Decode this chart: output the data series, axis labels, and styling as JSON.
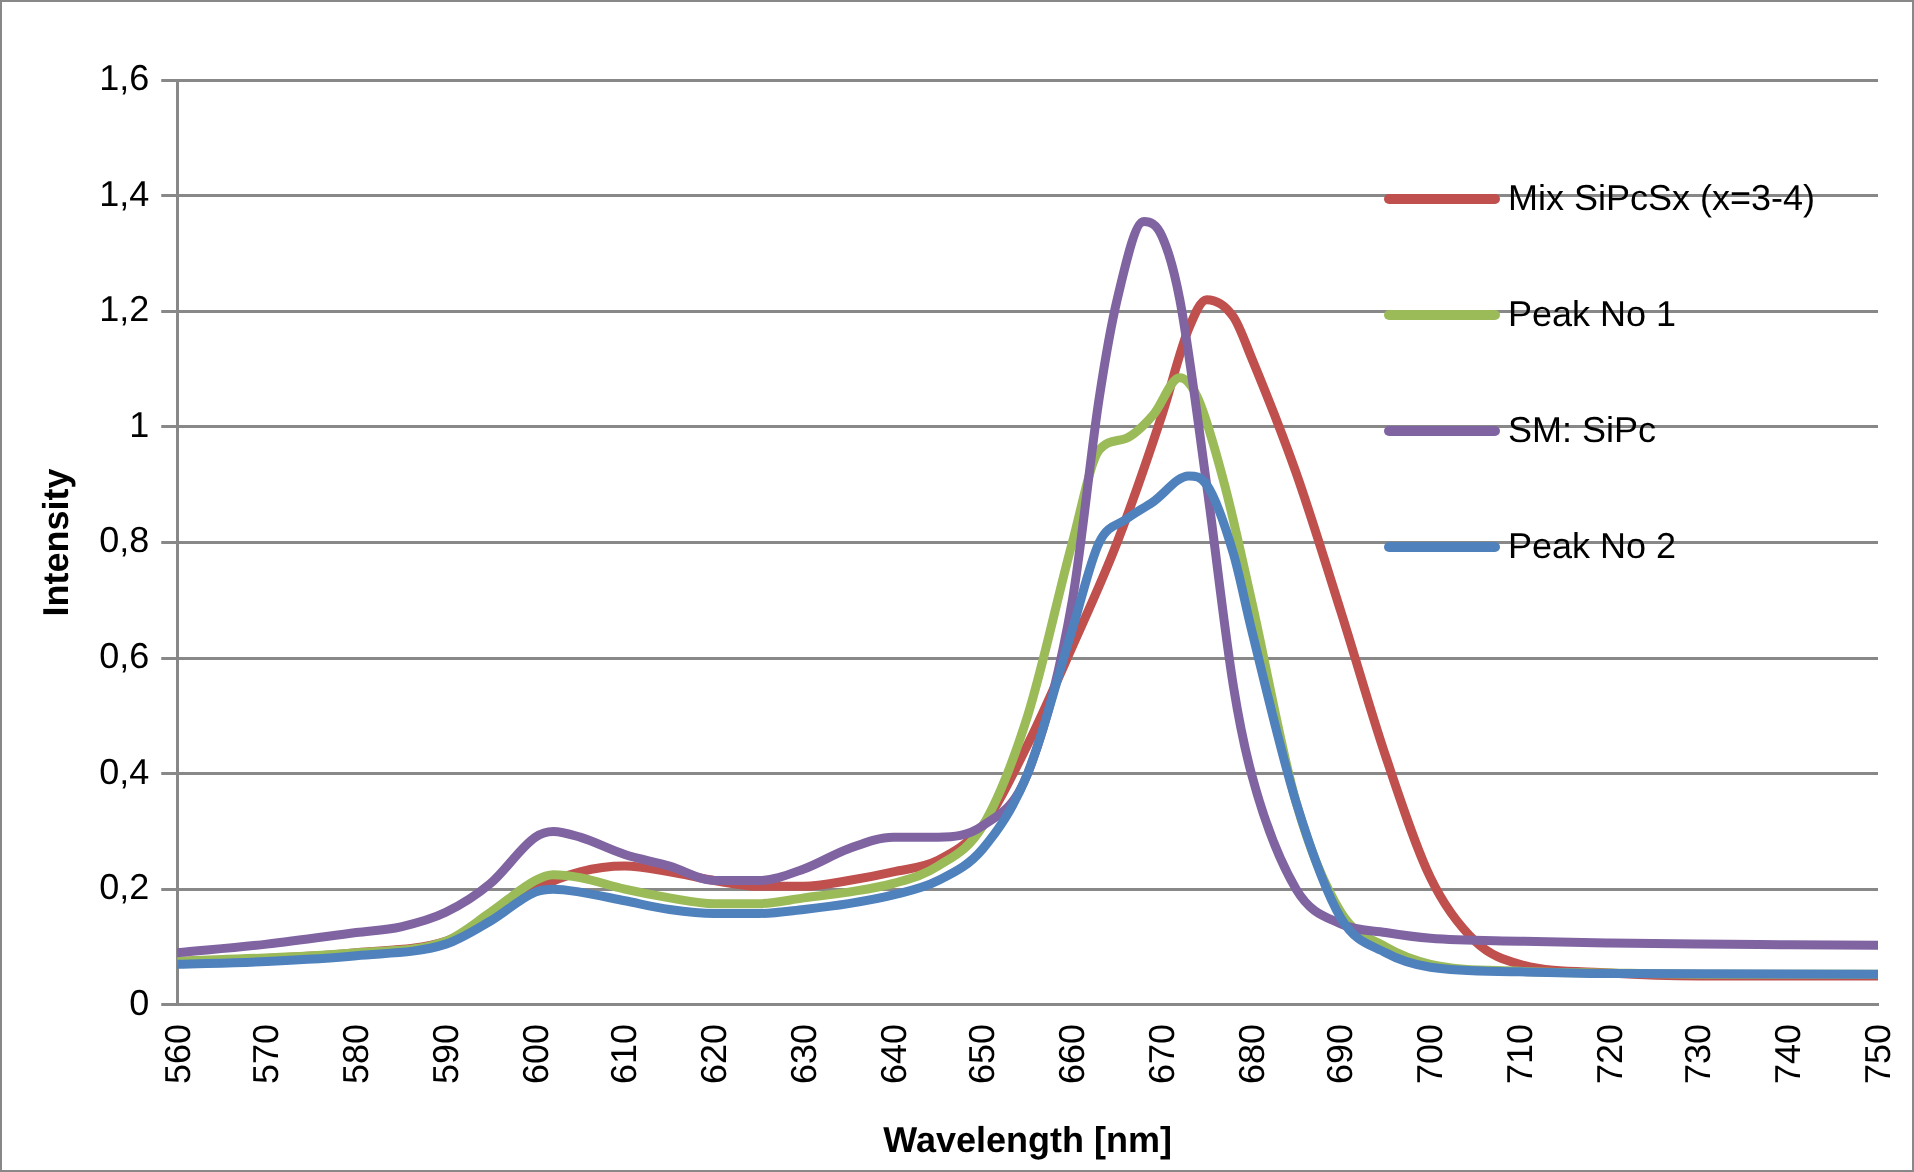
{
  "chart_data": {
    "type": "line",
    "xlabel": "Wavelength [nm]",
    "ylabel": "Intensity",
    "xlim": [
      560,
      750
    ],
    "xticks": [
      560,
      570,
      580,
      590,
      600,
      610,
      620,
      630,
      640,
      650,
      660,
      670,
      680,
      690,
      700,
      710,
      720,
      730,
      740,
      750
    ],
    "ylim": [
      0,
      1.6
    ],
    "yticks": [
      {
        "value": 0,
        "label": "0"
      },
      {
        "value": 0.2,
        "label": "0,2"
      },
      {
        "value": 0.4,
        "label": "0,4"
      },
      {
        "value": 0.6,
        "label": "0,6"
      },
      {
        "value": 0.8,
        "label": "0,8"
      },
      {
        "value": 1,
        "label": "1"
      },
      {
        "value": 1.2,
        "label": "1,2"
      },
      {
        "value": 1.4,
        "label": "1,4"
      },
      {
        "value": 1.6,
        "label": "1,6"
      }
    ],
    "grid": "y",
    "legend": "right",
    "marker": "none",
    "line_style": "solid",
    "series": [
      {
        "name": "Mix SiPcSx (x=3-4)",
        "color": "#c0504d",
        "x": [
          560,
          570,
          580,
          590,
          595,
          600,
          605,
          610,
          615,
          620,
          625,
          630,
          635,
          640,
          645,
          650,
          655,
          660,
          665,
          670,
          673,
          675,
          678,
          680,
          685,
          690,
          695,
          700,
          705,
          710,
          720,
          730,
          740,
          750
        ],
        "values": [
          0.075,
          0.08,
          0.09,
          0.11,
          0.15,
          0.2,
          0.23,
          0.24,
          0.23,
          0.215,
          0.205,
          0.205,
          0.215,
          0.23,
          0.25,
          0.31,
          0.45,
          0.62,
          0.8,
          1.02,
          1.17,
          1.22,
          1.19,
          1.12,
          0.92,
          0.68,
          0.43,
          0.22,
          0.11,
          0.07,
          0.055,
          0.05,
          0.05,
          0.05
        ]
      },
      {
        "name": "Peak No 1",
        "color": "#9bbb59",
        "x": [
          560,
          580,
          590,
          595,
          600,
          602,
          605,
          610,
          615,
          620,
          625,
          630,
          635,
          640,
          645,
          650,
          655,
          660,
          663,
          666,
          669,
          672,
          674,
          677,
          680,
          685,
          690,
          695,
          700,
          710,
          720,
          730,
          750
        ],
        "values": [
          0.075,
          0.09,
          0.11,
          0.16,
          0.215,
          0.225,
          0.22,
          0.2,
          0.185,
          0.175,
          0.175,
          0.185,
          0.195,
          0.21,
          0.24,
          0.31,
          0.5,
          0.8,
          0.96,
          0.98,
          1.02,
          1.085,
          1.05,
          0.9,
          0.7,
          0.35,
          0.16,
          0.1,
          0.07,
          0.058,
          0.055,
          0.053,
          0.053
        ]
      },
      {
        "name": "SM: SiPc",
        "color": "#8064a2",
        "x": [
          560,
          570,
          580,
          585,
          590,
          595,
          600,
          602,
          605,
          610,
          615,
          620,
          625,
          630,
          635,
          640,
          645,
          650,
          655,
          660,
          663,
          665,
          668,
          670,
          672,
          675,
          678,
          680,
          685,
          690,
          695,
          700,
          710,
          720,
          730,
          740,
          750
        ],
        "values": [
          0.09,
          0.105,
          0.125,
          0.135,
          0.16,
          0.21,
          0.29,
          0.3,
          0.29,
          0.26,
          0.24,
          0.215,
          0.215,
          0.235,
          0.27,
          0.29,
          0.29,
          0.31,
          0.4,
          0.7,
          1.05,
          1.22,
          1.355,
          1.33,
          1.22,
          0.9,
          0.55,
          0.4,
          0.2,
          0.14,
          0.125,
          0.115,
          0.11,
          0.107,
          0.105,
          0.104,
          0.103
        ]
      },
      {
        "name": "Peak No 2",
        "color": "#4f81bd",
        "x": [
          560,
          570,
          580,
          590,
          595,
          600,
          602,
          605,
          610,
          615,
          620,
          625,
          630,
          635,
          640,
          645,
          650,
          655,
          660,
          663,
          666,
          669,
          673,
          675,
          678,
          680,
          685,
          690,
          695,
          700,
          710,
          720,
          750
        ],
        "values": [
          0.07,
          0.075,
          0.085,
          0.105,
          0.145,
          0.195,
          0.2,
          0.195,
          0.18,
          0.165,
          0.158,
          0.158,
          0.165,
          0.175,
          0.19,
          0.215,
          0.27,
          0.4,
          0.65,
          0.8,
          0.84,
          0.87,
          0.915,
          0.9,
          0.78,
          0.65,
          0.35,
          0.15,
          0.09,
          0.065,
          0.057,
          0.054,
          0.053
        ]
      }
    ]
  }
}
